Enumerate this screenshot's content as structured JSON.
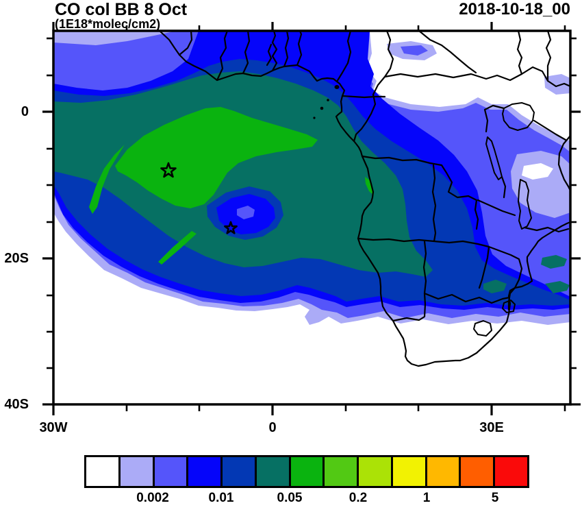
{
  "figure": {
    "title": "CO col BB 8 Oct",
    "units_label": "(1E18*molec/cm2)",
    "datetime_label": "2018-10-18_00"
  },
  "axes": {
    "y_tick_labels": [
      "0",
      "20S",
      "40S"
    ],
    "x_tick_labels": [
      "30W",
      "0",
      "30E"
    ]
  },
  "colorbar": {
    "colors": [
      "#FFFFFF",
      "#ABABF7",
      "#5555FA",
      "#0505FA",
      "#0338B4",
      "#067063",
      "#0AB30F",
      "#52C914",
      "#ABE206",
      "#F2F202",
      "#FFB800",
      "#FF5E00",
      "#FA0A0A"
    ],
    "labels": [
      {
        "text": "0.002",
        "boundary": 2
      },
      {
        "text": "0.01",
        "boundary": 4
      },
      {
        "text": "0.05",
        "boundary": 6
      },
      {
        "text": "0.2",
        "boundary": 8
      },
      {
        "text": "1",
        "boundary": 10
      },
      {
        "text": "5",
        "boundary": 12
      }
    ]
  },
  "chart_data": {
    "type": "heatmap",
    "subtype": "filled_contour_map",
    "title": "CO col BB 8 Oct",
    "units": "1E18*molec/cm2",
    "datetime": "2018-10-18_00",
    "x_axis": {
      "tick_labels": [
        "30W",
        "0",
        "30E"
      ],
      "approx_lon_range": [
        -30,
        40
      ]
    },
    "y_axis": {
      "tick_labels": [
        "0",
        "20S",
        "40S"
      ],
      "approx_lat_range": [
        -40,
        11
      ]
    },
    "contour_levels_labeled": [
      0.002,
      0.01,
      0.05,
      0.2,
      1,
      5
    ],
    "palette": [
      "#FFFFFF",
      "#ABABF7",
      "#5555FA",
      "#0505FA",
      "#0338B4",
      "#067063",
      "#0AB30F",
      "#52C914",
      "#ABE206",
      "#F2F202",
      "#FFB800",
      "#FF5E00",
      "#FA0A0A"
    ],
    "legend_position": "bottom",
    "map_region": "Africa and South Atlantic",
    "markers": [
      {
        "type": "star",
        "lon": -14.2,
        "lat": -8.1
      },
      {
        "type": "star",
        "lon": -5.7,
        "lat": -15.9
      }
    ]
  }
}
